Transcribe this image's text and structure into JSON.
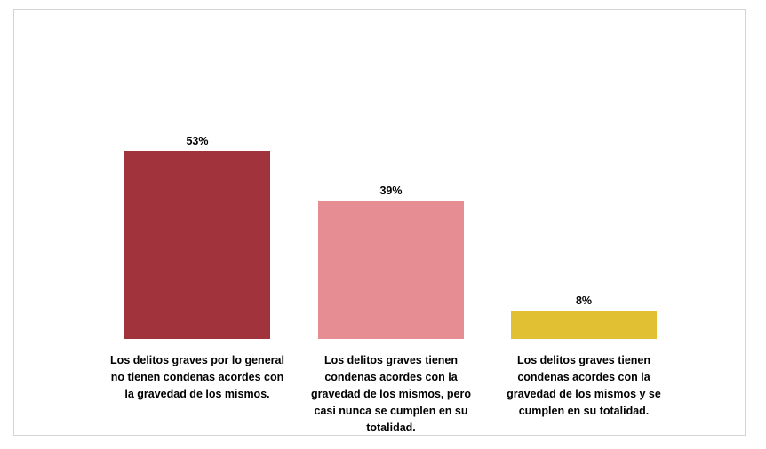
{
  "chart_data": {
    "type": "bar",
    "title": "",
    "xlabel": "",
    "ylabel": "",
    "ylim": [
      0,
      53
    ],
    "grid": false,
    "legend": "none",
    "categories": [
      "Los delitos graves por lo general no tienen condenas acordes con la gravedad de los mismos.",
      "Los delitos graves tienen condenas acordes con la gravedad de los mismos, pero casi nunca se cumplen en su totalidad.",
      "Los delitos graves tienen condenas acordes con la gravedad de los mismos y se cumplen en su totalidad."
    ],
    "values": [
      53,
      39,
      8
    ],
    "data_labels": [
      "53%",
      "39%",
      "8%"
    ],
    "colors": [
      "#a0333c",
      "#e68c93",
      "#e1c133"
    ]
  }
}
